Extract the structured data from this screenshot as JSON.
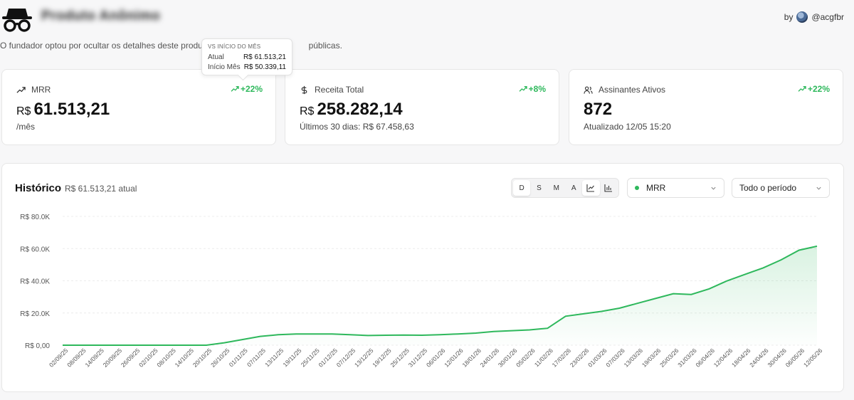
{
  "header": {
    "product_name": "Produto Anônimo",
    "by_label": "by",
    "handle": "@acgfbr"
  },
  "notice": "O fundador optou por ocultar os detalhes deste produto",
  "notice_tail": "públicas.",
  "tooltip": {
    "title": "VS INÍCIO DO MÊS",
    "rows": [
      {
        "label": "Atual",
        "value": "R$ 61.513,21"
      },
      {
        "label": "Início Mês",
        "value": "R$ 50.339,11"
      }
    ]
  },
  "cards": [
    {
      "label": "MRR",
      "delta": "+22%",
      "currency": "R$",
      "value": "61.513,21",
      "sub": "/mês",
      "icon": "trending-up-icon"
    },
    {
      "label": "Receita Total",
      "delta": "+8%",
      "currency": "R$",
      "value": "258.282,14",
      "sub": "Últimos 30 dias: R$ 67.458,63",
      "icon": "dollar-icon"
    },
    {
      "label": "Assinantes Ativos",
      "delta": "+22%",
      "currency": "",
      "value": "872",
      "sub": "Atualizado 12/05 15:20",
      "icon": "users-icon"
    }
  ],
  "history": {
    "title": "Histórico",
    "subtitle": "R$ 61.513,21 atual",
    "periods": [
      "D",
      "S",
      "M",
      "A"
    ],
    "active_period": "D",
    "metric_select": "MRR",
    "range_select": "Todo o período"
  },
  "colors": {
    "accent": "#2eb85c"
  },
  "chart_data": {
    "type": "area",
    "ylim": [
      0,
      80000
    ],
    "yticks": [
      0,
      20000,
      40000,
      60000,
      80000
    ],
    "ytick_labels": [
      "R$ 0,00",
      "R$ 20.0K",
      "R$ 40.0K",
      "R$ 60.0K",
      "R$ 80.0K"
    ],
    "x_labels": [
      "02/09/25",
      "08/09/25",
      "14/09/25",
      "20/09/25",
      "26/09/25",
      "02/10/25",
      "08/10/25",
      "14/10/25",
      "20/10/25",
      "26/10/25",
      "01/11/25",
      "07/11/25",
      "13/11/25",
      "19/11/25",
      "25/11/25",
      "01/12/25",
      "07/12/25",
      "13/12/25",
      "19/12/25",
      "25/12/25",
      "31/12/25",
      "06/01/26",
      "12/01/26",
      "18/01/26",
      "24/01/26",
      "30/01/26",
      "05/02/26",
      "11/02/26",
      "17/02/26",
      "23/02/26",
      "01/03/26",
      "07/03/26",
      "13/03/26",
      "19/03/26",
      "25/03/26",
      "31/03/26",
      "06/04/26",
      "12/04/26",
      "18/04/26",
      "24/04/26",
      "30/04/26",
      "06/05/26",
      "12/05/26"
    ],
    "series": [
      {
        "values": [
          0,
          0,
          0,
          0,
          0,
          0,
          0,
          0,
          0,
          1500,
          3500,
          5500,
          6500,
          7000,
          7000,
          7000,
          6500,
          6000,
          6200,
          6300,
          6200,
          6500,
          7000,
          7500,
          8500,
          9000,
          9500,
          10500,
          18000,
          19500,
          21000,
          23000,
          26000,
          29000,
          32000,
          31500,
          35000,
          40000,
          44000,
          48000,
          53000,
          59000,
          61500
        ]
      }
    ],
    "grid": true
  }
}
